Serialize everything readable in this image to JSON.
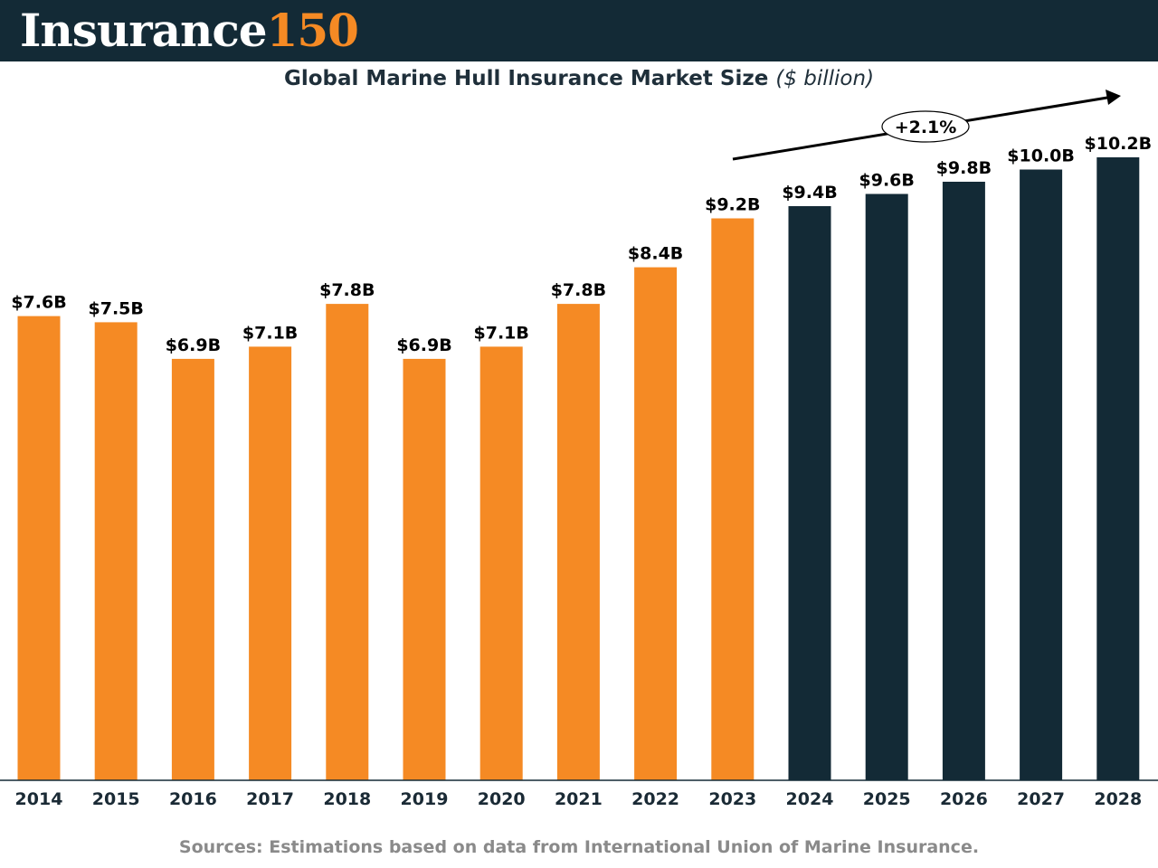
{
  "header": {
    "logo_word": "Insurance",
    "logo_number": "150"
  },
  "title": {
    "main": "Global Marine Hull Insurance Market Size",
    "unit": "($ billion)"
  },
  "source": "Sources: Estimations based on data from International Union of Marine Insurance.",
  "colors": {
    "historical": "#f58a24",
    "forecast": "#132a36",
    "header_bg": "#132a36",
    "source_text": "#8a8a8a"
  },
  "chart_data": {
    "type": "bar",
    "title": "Global Marine Hull Insurance Market Size ($ billion)",
    "xlabel": "",
    "ylabel": "",
    "ylim": [
      0,
      10.2
    ],
    "grid": false,
    "categories": [
      "2014",
      "2015",
      "2016",
      "2017",
      "2018",
      "2019",
      "2020",
      "2021",
      "2022",
      "2023",
      "2024",
      "2025",
      "2026",
      "2027",
      "2028"
    ],
    "values": [
      7.6,
      7.5,
      6.9,
      7.1,
      7.8,
      6.9,
      7.1,
      7.8,
      8.4,
      9.2,
      9.4,
      9.6,
      9.8,
      10.0,
      10.2
    ],
    "labels": [
      "$7.6B",
      "$7.5B",
      "$6.9B",
      "$7.1B",
      "$7.8B",
      "$6.9B",
      "$7.1B",
      "$7.8B",
      "$8.4B",
      "$9.2B",
      "$9.4B",
      "$9.6B",
      "$9.8B",
      "$10.0B",
      "$10.2B"
    ],
    "forecast_start": "2024",
    "annotation": {
      "text": "+2.1%",
      "type": "trend-arrow"
    }
  }
}
